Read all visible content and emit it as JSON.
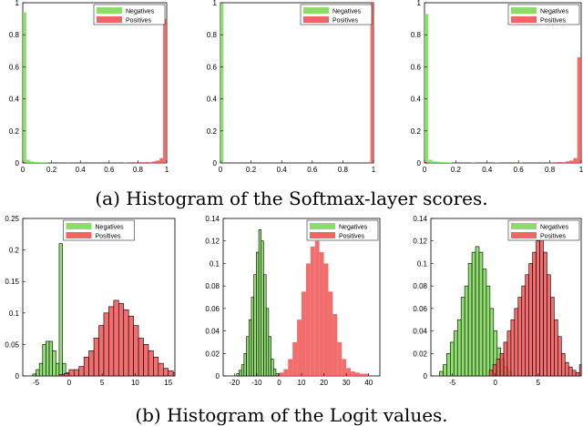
{
  "captions": {
    "a": "(a) Histogram of the Softmax-layer scores.",
    "b": "(b) Histogram of the Logit values."
  },
  "colors": {
    "negatives": "#7ed957",
    "positives": "#f05454",
    "edge": "#000000"
  },
  "chart_data": [
    {
      "type": "bar",
      "title": "",
      "xlim": [
        0,
        1
      ],
      "ylim": [
        0,
        1
      ],
      "xticks": [
        "0",
        "0.2",
        "0.4",
        "0.6",
        "0.8",
        "1"
      ],
      "yticks": [
        "0",
        "0.2",
        "0.4",
        "0.6",
        "0.8",
        "1"
      ],
      "legend": {
        "placement": "top-right",
        "entries": [
          "Negatives",
          "Positives"
        ]
      },
      "series": [
        {
          "name": "Negatives",
          "edge": false,
          "bins": [
            [
              0.0,
              0.025,
              0.94
            ],
            [
              0.025,
              0.05,
              0.02
            ],
            [
              0.05,
              0.075,
              0.01
            ],
            [
              0.075,
              0.1,
              0.005
            ],
            [
              0.1,
              0.125,
              0.004
            ],
            [
              0.125,
              0.15,
              0.003
            ],
            [
              0.15,
              0.175,
              0.002
            ],
            [
              0.3,
              0.325,
              0.001
            ],
            [
              0.6,
              0.625,
              0.001
            ],
            [
              0.8,
              0.825,
              0.001
            ],
            [
              0.9,
              0.925,
              0.001
            ]
          ]
        },
        {
          "name": "Positives",
          "edge": false,
          "bins": [
            [
              0.0,
              0.025,
              0.004
            ],
            [
              0.7,
              0.725,
              0.003
            ],
            [
              0.8,
              0.825,
              0.005
            ],
            [
              0.85,
              0.875,
              0.006
            ],
            [
              0.9,
              0.925,
              0.01
            ],
            [
              0.925,
              0.95,
              0.015
            ],
            [
              0.95,
              0.975,
              0.03
            ],
            [
              0.975,
              1.0,
              0.9
            ]
          ]
        }
      ]
    },
    {
      "type": "bar",
      "title": "",
      "xlim": [
        0,
        1
      ],
      "ylim": [
        0,
        1
      ],
      "xticks": [
        "0",
        "0.2",
        "0.4",
        "0.6",
        "0.8",
        "1"
      ],
      "yticks": [
        "0",
        "0.2",
        "0.4",
        "0.6",
        "0.8",
        "1"
      ],
      "legend": {
        "placement": "top-right",
        "entries": [
          "Negatives",
          "Positives"
        ]
      },
      "series": [
        {
          "name": "Negatives",
          "edge": false,
          "bins": [
            [
              0.0,
              0.02,
              1.0
            ]
          ]
        },
        {
          "name": "Positives",
          "edge": false,
          "bins": [
            [
              0.98,
              1.0,
              1.0
            ]
          ]
        }
      ]
    },
    {
      "type": "bar",
      "title": "",
      "xlim": [
        0,
        1
      ],
      "ylim": [
        0,
        1
      ],
      "xticks": [
        "0",
        "0.2",
        "0.4",
        "0.6",
        "0.8",
        "1"
      ],
      "yticks": [
        "0",
        "0.2",
        "0.4",
        "0.6",
        "0.8",
        "1"
      ],
      "legend": {
        "placement": "top-right",
        "entries": [
          "Negatives",
          "Positives"
        ]
      },
      "series": [
        {
          "name": "Negatives",
          "edge": false,
          "bins": [
            [
              0.0,
              0.025,
              0.93
            ],
            [
              0.025,
              0.05,
              0.02
            ],
            [
              0.05,
              0.075,
              0.01
            ],
            [
              0.075,
              0.1,
              0.008
            ],
            [
              0.1,
              0.125,
              0.005
            ],
            [
              0.125,
              0.15,
              0.004
            ],
            [
              0.15,
              0.175,
              0.003
            ],
            [
              0.3,
              0.325,
              0.002
            ],
            [
              0.45,
              0.475,
              0.002
            ],
            [
              0.6,
              0.625,
              0.004
            ],
            [
              0.8,
              0.825,
              0.002
            ],
            [
              0.9,
              0.925,
              0.002
            ]
          ]
        },
        {
          "name": "Positives",
          "edge": false,
          "bins": [
            [
              0.0,
              0.025,
              0.005
            ],
            [
              0.8,
              0.825,
              0.004
            ],
            [
              0.85,
              0.875,
              0.006
            ],
            [
              0.9,
              0.925,
              0.01
            ],
            [
              0.925,
              0.95,
              0.015
            ],
            [
              0.95,
              0.975,
              0.03
            ],
            [
              0.975,
              1.0,
              0.66
            ]
          ]
        }
      ]
    },
    {
      "type": "bar",
      "title": "",
      "xlim": [
        -7,
        16
      ],
      "ylim": [
        0,
        0.25
      ],
      "xticks": [
        "-5",
        "0",
        "5",
        "10",
        "15"
      ],
      "xtick_values": [
        -5,
        0,
        5,
        10,
        15
      ],
      "yticks": [
        "0",
        "0.05",
        "0.1",
        "0.15",
        "0.2",
        "0.25"
      ],
      "ytick_values": [
        0,
        0.05,
        0.1,
        0.15,
        0.2,
        0.25
      ],
      "legend": {
        "placement": "top",
        "entries": [
          "Negatives",
          "Positives"
        ]
      },
      "series": [
        {
          "name": "Negatives",
          "edge": true,
          "start": -5.5,
          "width": 0.5,
          "values": [
            0.003,
            0.01,
            0.02,
            0.05,
            0.055,
            0.055,
            0.04,
            0.02,
            0.21,
            0.02,
            0.005
          ]
        },
        {
          "name": "Positives",
          "edge": true,
          "start": -1.5,
          "width": 0.75,
          "values": [
            0.002,
            0.004,
            0.01,
            0.01,
            0.015,
            0.03,
            0.04,
            0.06,
            0.08,
            0.1,
            0.11,
            0.12,
            0.115,
            0.105,
            0.095,
            0.08,
            0.06,
            0.05,
            0.04,
            0.03,
            0.02,
            0.012,
            0.008,
            0.005
          ]
        }
      ]
    },
    {
      "type": "bar",
      "title": "",
      "xlim": [
        -25,
        45
      ],
      "ylim": [
        0,
        0.14
      ],
      "xticks": [
        "-20",
        "-10",
        "0",
        "10",
        "20",
        "30",
        "40"
      ],
      "xtick_values": [
        -20,
        -10,
        0,
        10,
        20,
        30,
        40
      ],
      "yticks": [
        "0",
        "0.02",
        "0.04",
        "0.06",
        "0.08",
        "0.1",
        "0.12",
        "0.14"
      ],
      "ytick_values": [
        0,
        0.02,
        0.04,
        0.06,
        0.08,
        0.1,
        0.12,
        0.14
      ],
      "legend": {
        "placement": "top-right",
        "entries": [
          "Negatives",
          "Positives"
        ]
      },
      "series": [
        {
          "name": "Negatives",
          "edge": true,
          "start": -19,
          "width": 1.1,
          "values": [
            0.002,
            0.005,
            0.01,
            0.02,
            0.035,
            0.05,
            0.07,
            0.09,
            0.11,
            0.13,
            0.12,
            0.09,
            0.06,
            0.035,
            0.015,
            0.006,
            0.002
          ]
        },
        {
          "name": "Positives",
          "edge": false,
          "start": 0,
          "width": 2,
          "values": [
            0.003,
            0.006,
            0.015,
            0.03,
            0.05,
            0.075,
            0.1,
            0.115,
            0.12,
            0.11,
            0.1,
            0.075,
            0.055,
            0.03,
            0.015,
            0.007,
            0.004,
            0.003,
            0.002,
            0.002
          ]
        }
      ]
    },
    {
      "type": "bar",
      "title": "",
      "xlim": [
        -7.5,
        10
      ],
      "ylim": [
        0,
        0.14
      ],
      "xticks": [
        "-5",
        "0",
        "5"
      ],
      "xtick_values": [
        -5,
        0,
        5
      ],
      "yticks": [
        "0",
        "0.02",
        "0.04",
        "0.06",
        "0.08",
        "0.1",
        "0.12",
        "0.14"
      ],
      "ytick_values": [
        0,
        0.02,
        0.04,
        0.06,
        0.08,
        0.1,
        0.12,
        0.14
      ],
      "legend": {
        "placement": "top-right",
        "entries": [
          "Negatives",
          "Positives"
        ]
      },
      "series": [
        {
          "name": "Negatives",
          "edge": true,
          "start": -6.5,
          "width": 0.42,
          "values": [
            0.004,
            0.01,
            0.02,
            0.03,
            0.04,
            0.05,
            0.07,
            0.08,
            0.1,
            0.11,
            0.115,
            0.11,
            0.095,
            0.08,
            0.06,
            0.04,
            0.025,
            0.015,
            0.008,
            0.004
          ]
        },
        {
          "name": "Positives",
          "edge": true,
          "start": -0.7,
          "width": 0.42,
          "values": [
            0.005,
            0.01,
            0.015,
            0.02,
            0.03,
            0.04,
            0.05,
            0.06,
            0.07,
            0.08,
            0.09,
            0.1,
            0.11,
            0.12,
            0.13,
            0.11,
            0.09,
            0.07,
            0.05,
            0.035,
            0.02,
            0.012,
            0.008,
            0.005,
            0.003,
            0.01
          ]
        }
      ]
    }
  ]
}
